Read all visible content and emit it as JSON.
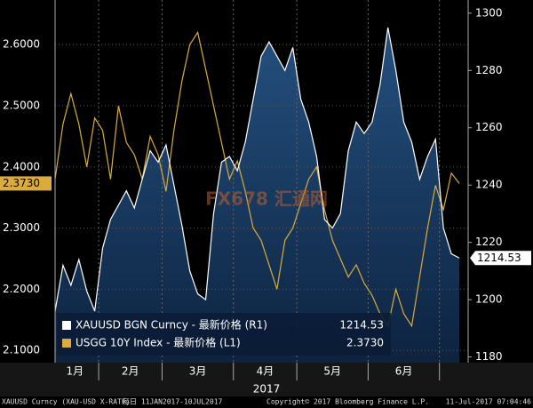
{
  "chart_data": {
    "type": "line",
    "categories": [
      "1月",
      "1月",
      "1月",
      "1月",
      "1月",
      "1月",
      "2月",
      "2月",
      "2月",
      "2月",
      "2月",
      "2月",
      "2月",
      "2月",
      "3月",
      "3月",
      "3月",
      "3月",
      "3月",
      "3月",
      "3月",
      "3月",
      "3月",
      "4月",
      "4月",
      "4月",
      "4月",
      "4月",
      "4月",
      "4月",
      "4月",
      "5月",
      "5月",
      "5月",
      "5月",
      "5月",
      "5月",
      "5月",
      "5月",
      "5月",
      "6月",
      "6月",
      "6月",
      "6月",
      "6月",
      "6月",
      "6月",
      "6月",
      "6月",
      null,
      null,
      null
    ],
    "x_label": "2017",
    "series": [
      {
        "name": "XAUUSD BGN Curncy - 最新价格 (R1)",
        "color": "#ffffff",
        "fill": "#1d3d66",
        "axis": "y2",
        "values": [
          1196,
          1212,
          1205,
          1214,
          1203,
          1196,
          1218,
          1228,
          1233,
          1238,
          1232,
          1242,
          1252,
          1248,
          1254,
          1240,
          1226,
          1210,
          1202,
          1200,
          1230,
          1248,
          1250,
          1245,
          1255,
          1270,
          1285,
          1290,
          1285,
          1280,
          1288,
          1270,
          1262,
          1250,
          1228,
          1225,
          1230,
          1252,
          1262,
          1258,
          1262,
          1275,
          1295,
          1280,
          1262,
          1255,
          1242,
          1250,
          1256,
          1225,
          1216,
          1214.53
        ]
      },
      {
        "name": "USGG 10Y Index - 最新价格 (L1)",
        "color": "#d9ac3c",
        "values": [
          2.38,
          2.47,
          2.52,
          2.47,
          2.4,
          2.48,
          2.46,
          2.38,
          2.5,
          2.44,
          2.42,
          2.38,
          2.45,
          2.42,
          2.36,
          2.46,
          2.54,
          2.6,
          2.62,
          2.56,
          2.5,
          2.44,
          2.38,
          2.41,
          2.36,
          2.3,
          2.28,
          2.24,
          2.2,
          2.28,
          2.3,
          2.34,
          2.38,
          2.4,
          2.33,
          2.28,
          2.25,
          2.22,
          2.24,
          2.21,
          2.19,
          2.16,
          2.14,
          2.2,
          2.16,
          2.14,
          2.22,
          2.3,
          2.37,
          2.33,
          2.39,
          2.373
        ],
        "value_labels": [
          null,
          null,
          null,
          null,
          null,
          null,
          null,
          null,
          null,
          null,
          null,
          null,
          null,
          null,
          null,
          null,
          null,
          null,
          null,
          null,
          null,
          null,
          null,
          null,
          null,
          null,
          null,
          null,
          null,
          null,
          null,
          null,
          null,
          null,
          null,
          null,
          null,
          null,
          null,
          null,
          null,
          null,
          null,
          null,
          null,
          null,
          null,
          null,
          null,
          null,
          null,
          "2.3730"
        ]
      }
    ],
    "ylim": [
      2.08,
      2.673
    ],
    "yticks": [
      {
        "value": 2.1,
        "label": "2.1000"
      },
      {
        "value": 2.2,
        "label": "2.2000"
      },
      {
        "value": 2.3,
        "label": "2.3000"
      },
      {
        "value": 2.4,
        "label": "2.4000"
      },
      {
        "value": 2.5,
        "label": "2.5000"
      },
      {
        "value": 2.6,
        "label": "2.6000"
      }
    ],
    "y2lim": [
      1178,
      1304.6
    ],
    "y2ticks": [
      1180,
      1200,
      1220,
      1240,
      1260,
      1280,
      1300
    ],
    "grid": true,
    "watermark": "FX678 汇通网"
  },
  "footer": {
    "source": "XAUUSD Curncy (XAU-USD X-RATE)",
    "range": "每日 11JAN2017-10JUL2017",
    "copyright": "Copyright© 2017 Bloomberg Finance L.P.",
    "timestamp": "11-Jul-2017 07:04:46"
  }
}
